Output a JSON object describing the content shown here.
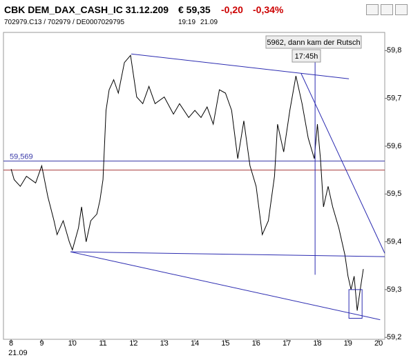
{
  "header": {
    "title": "CBK DEM_DAX_CASH_IC 31.12.209",
    "price": "€ 59,35",
    "change": "-0,20",
    "change_pct": "-0,34%",
    "symbols": "702979.C13 / 702979 / DE0007029795",
    "time": "19:19",
    "date": "21.09"
  },
  "chart_data": {
    "type": "line",
    "color": "#000000",
    "x": [
      8.0,
      8.1,
      8.3,
      8.5,
      8.8,
      9.0,
      9.2,
      9.4,
      9.5,
      9.7,
      9.9,
      10.0,
      10.2,
      10.3,
      10.45,
      10.6,
      10.8,
      10.9,
      11.0,
      11.1,
      11.2,
      11.35,
      11.5,
      11.7,
      11.9,
      12.1,
      12.3,
      12.5,
      12.7,
      13.0,
      13.3,
      13.5,
      13.8,
      14.0,
      14.2,
      14.4,
      14.6,
      14.8,
      15.0,
      15.2,
      15.4,
      15.6,
      15.8,
      16.0,
      16.2,
      16.4,
      16.6,
      16.7,
      16.9,
      17.1,
      17.3,
      17.5,
      17.7,
      17.9,
      18.0,
      18.1,
      18.2,
      18.35,
      18.5,
      18.7,
      18.9,
      19.0,
      19.1,
      19.2,
      19.3,
      19.4,
      19.5
    ],
    "values": [
      59.552,
      59.53,
      59.516,
      59.537,
      59.523,
      59.559,
      59.494,
      59.444,
      59.415,
      59.444,
      59.4,
      59.383,
      59.429,
      59.473,
      59.4,
      59.444,
      59.458,
      59.487,
      59.53,
      59.675,
      59.718,
      59.739,
      59.711,
      59.775,
      59.79,
      59.703,
      59.689,
      59.725,
      59.689,
      59.703,
      59.667,
      59.689,
      59.66,
      59.675,
      59.66,
      59.682,
      59.646,
      59.718,
      59.711,
      59.675,
      59.574,
      59.653,
      59.559,
      59.516,
      59.415,
      59.444,
      59.537,
      59.646,
      59.588,
      59.675,
      59.747,
      59.689,
      59.617,
      59.574,
      59.646,
      59.574,
      59.473,
      59.516,
      59.473,
      59.429,
      59.372,
      59.328,
      59.3,
      59.328,
      59.256,
      59.3,
      59.343
    ],
    "xlim": [
      7.75,
      20.2
    ],
    "ylim": [
      59.196,
      59.838
    ],
    "xticks": [
      8,
      9,
      10,
      11,
      12,
      13,
      14,
      15,
      16,
      17,
      18,
      19,
      20
    ],
    "x_date_label": "21.09",
    "yticks": [
      {
        "value": 59.2,
        "label": "59,2"
      },
      {
        "value": 59.3,
        "label": "59,3"
      },
      {
        "value": 59.4,
        "label": "59,4"
      },
      {
        "value": 59.5,
        "label": "59,5"
      },
      {
        "value": 59.6,
        "label": "59,6"
      },
      {
        "value": 59.7,
        "label": "59,7"
      },
      {
        "value": 59.8,
        "label": "59,8"
      }
    ],
    "hlines": [
      {
        "value": 59.569,
        "label": "59,569",
        "color": "#3a3aa8"
      },
      {
        "value": 59.55,
        "color": "#a83a3a"
      }
    ],
    "drawings": [
      {
        "x": [
          11.925,
          19.03
        ],
        "y": [
          59.793,
          59.741
        ]
      },
      {
        "x": [
          17.47,
          20.2
        ],
        "y": [
          59.752,
          59.376
        ]
      },
      {
        "x": [
          9.94,
          20.2
        ],
        "y": [
          59.379,
          59.369
        ]
      },
      {
        "x": [
          9.94,
          20.05
        ],
        "y": [
          59.379,
          59.237
        ]
      },
      {
        "x": [
          17.925,
          17.925
        ],
        "y": [
          59.797,
          59.331
        ]
      }
    ],
    "drawing_color": "#2a2ab0",
    "box": {
      "x": [
        19.03,
        19.46
      ],
      "y": [
        59.3,
        59.24
      ]
    },
    "annotations": [
      "5962, dann kam der Rutsch",
      "17:45h"
    ]
  }
}
